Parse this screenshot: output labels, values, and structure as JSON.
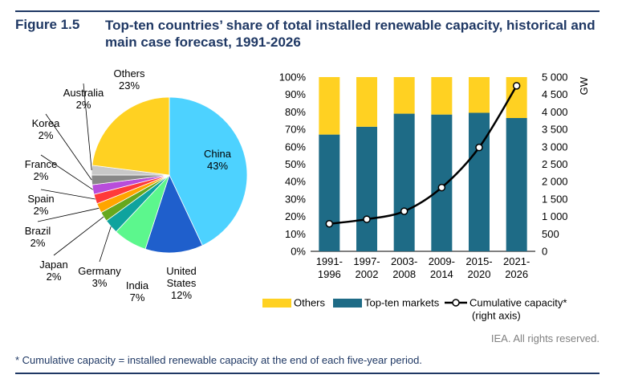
{
  "header": {
    "figure_number": "Figure 1.5",
    "title": "Top-ten countries’ share of total installed renewable capacity, historical and main case forecast, 1991-2026"
  },
  "colors": {
    "title": "#1f3864",
    "others": "#ffd122",
    "top_ten": "#1e6b86",
    "china": "#4dd2ff",
    "united_states": "#1f5fcc",
    "india": "#5cf78d",
    "germany": "#0fa39e",
    "japan": "#66a81d",
    "brazil": "#ffa500",
    "spain": "#ff3a3a",
    "france": "#b84ddb",
    "korea": "#888888",
    "australia": "#c8c8c8",
    "line": "#000000"
  },
  "chart_data": [
    {
      "type": "pie",
      "slices": [
        {
          "name": "China",
          "value": 43,
          "label": "43%",
          "color": "#4dd2ff"
        },
        {
          "name": "United States",
          "value": 12,
          "label": "12%",
          "color": "#1f5fcc"
        },
        {
          "name": "India",
          "value": 7,
          "label": "7%",
          "color": "#5cf78d"
        },
        {
          "name": "Germany",
          "value": 3,
          "label": "3%",
          "color": "#0fa39e"
        },
        {
          "name": "Japan",
          "value": 2,
          "label": "2%",
          "color": "#66a81d"
        },
        {
          "name": "Brazil",
          "value": 2,
          "label": "2%",
          "color": "#ffa500"
        },
        {
          "name": "Spain",
          "value": 2,
          "label": "2%",
          "color": "#ff3a3a"
        },
        {
          "name": "France",
          "value": 2,
          "label": "2%",
          "color": "#b84ddb"
        },
        {
          "name": "Korea",
          "value": 2,
          "label": "2%",
          "color": "#888888"
        },
        {
          "name": "Australia",
          "value": 2,
          "label": "2%",
          "color": "#c8c8c8"
        },
        {
          "name": "Others",
          "value": 23,
          "label": "23%",
          "color": "#ffd122"
        }
      ]
    },
    {
      "type": "bar",
      "stacked": true,
      "categories": [
        "1991-1996",
        "1997-2002",
        "2003-2008",
        "2009-2014",
        "2015-2020",
        "2021-2026"
      ],
      "category_lines": [
        [
          "1991-",
          "1996"
        ],
        [
          "1997-",
          "2002"
        ],
        [
          "2003-",
          "2008"
        ],
        [
          "2009-",
          "2014"
        ],
        [
          "2015-",
          "2020"
        ],
        [
          "2021-",
          "2026"
        ]
      ],
      "series": [
        {
          "name": "Top-ten markets",
          "axis": "left",
          "values": [
            67,
            71.5,
            79,
            78.5,
            79.5,
            76.5
          ]
        },
        {
          "name": "Others",
          "axis": "left",
          "values": [
            33,
            28.5,
            21,
            21.5,
            20.5,
            23.5
          ]
        },
        {
          "name": "Cumulative capacity*",
          "type": "line",
          "axis": "right",
          "values": [
            790,
            920,
            1150,
            1830,
            2980,
            4750
          ]
        }
      ],
      "left_axis": {
        "ylim": [
          0,
          100
        ],
        "ticks": [
          0,
          10,
          20,
          30,
          40,
          50,
          60,
          70,
          80,
          90,
          100
        ],
        "tick_labels": [
          "0%",
          "10%",
          "20%",
          "30%",
          "40%",
          "50%",
          "60%",
          "70%",
          "80%",
          "90%",
          "100%"
        ]
      },
      "right_axis": {
        "ylabel": "GW",
        "ylim": [
          0,
          5000
        ],
        "ticks": [
          0,
          500,
          1000,
          1500,
          2000,
          2500,
          3000,
          3500,
          4000,
          4500,
          5000
        ],
        "tick_labels": [
          "0",
          "500",
          "1 000",
          "1 500",
          "2 000",
          "2 500",
          "3 000",
          "3 500",
          "4 000",
          "4 500",
          "5 000"
        ]
      },
      "legend": {
        "position": "bottom",
        "items": [
          {
            "label": "Others",
            "kind": "box",
            "color": "#ffd122"
          },
          {
            "label": "Top-ten markets",
            "kind": "box",
            "color": "#1e6b86"
          },
          {
            "label": "Cumulative capacity*",
            "kind": "line"
          }
        ],
        "line_note": "(right axis)"
      },
      "grid": false
    }
  ],
  "credit": "IEA. All rights reserved.",
  "footnote": "* Cumulative capacity = installed renewable capacity at the end of each five-year period."
}
